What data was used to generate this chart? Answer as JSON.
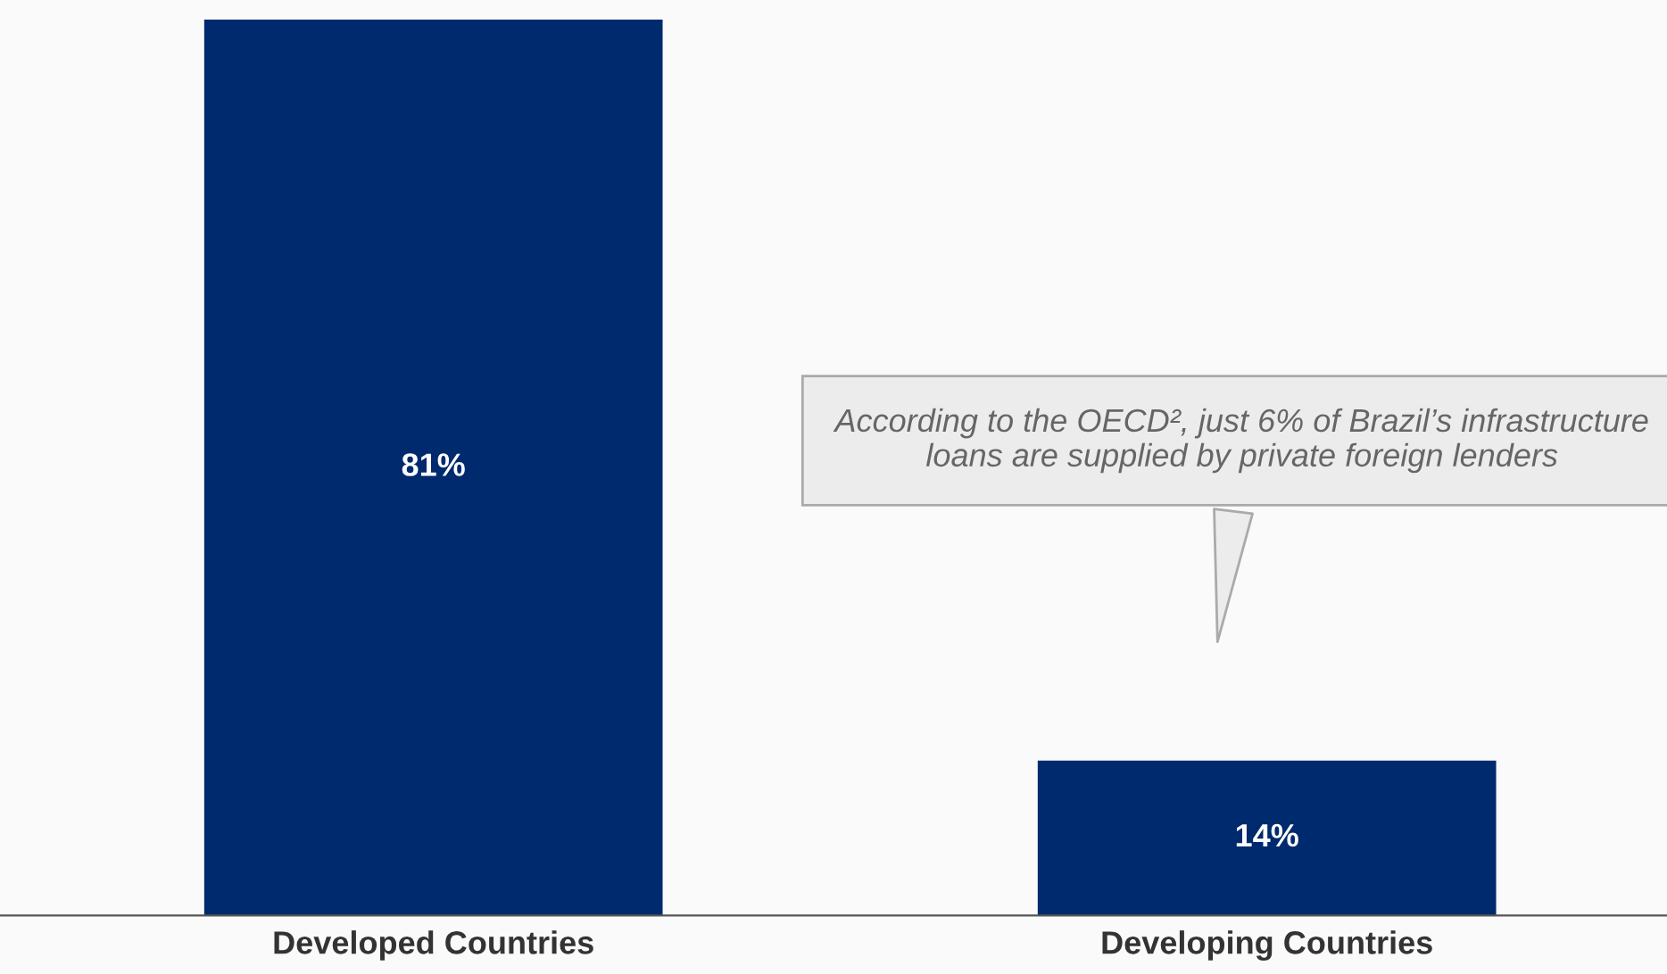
{
  "chart_data": {
    "type": "bar",
    "categories": [
      "Developed Countries",
      "Developing Countries"
    ],
    "values": [
      81,
      14
    ],
    "color": "#002a6e",
    "value_labels": [
      "81%",
      "14%"
    ],
    "annotations": [
      "According to the OECD², just 6% of Brazil’s infrastructure loans are supplied by private foreign lenders"
    ],
    "grid": false,
    "legend": false
  }
}
